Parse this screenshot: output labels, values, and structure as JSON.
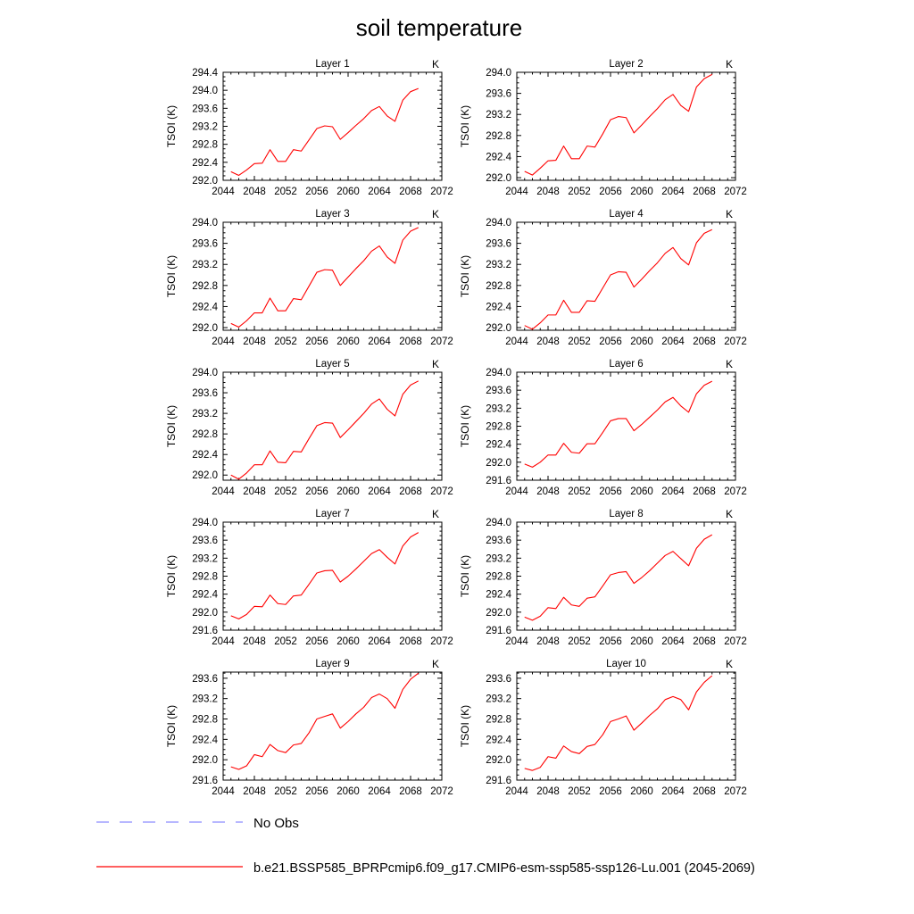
{
  "figure": {
    "title": "soil temperature"
  },
  "legend": {
    "items": [
      {
        "label": "No Obs",
        "color": "#8c8cff",
        "dash": true
      },
      {
        "label": "b.e21.BSSP585_BPRPcmip6.f09_g17.CMIP6-esm-ssp585-ssp126-Lu.001 (2045-2069)",
        "color": "#ff0000",
        "dash": false
      }
    ]
  },
  "chart_data": [
    {
      "type": "line",
      "title": "Layer 1",
      "ylabel": "TSOI  (K)",
      "units": "K",
      "xlim": [
        2044,
        2072
      ],
      "xticks": [
        2044,
        2048,
        2052,
        2056,
        2060,
        2064,
        2068,
        2072
      ],
      "ylim": [
        292.0,
        294.4
      ],
      "yticks": [
        "292.0",
        "292.4",
        "292.8",
        "293.2",
        "293.6",
        "294.0",
        "294.4"
      ],
      "x": [
        2045,
        2046,
        2047,
        2048,
        2049,
        2050,
        2051,
        2052,
        2053,
        2054,
        2055,
        2056,
        2057,
        2058,
        2059,
        2060,
        2061,
        2062,
        2063,
        2064,
        2065,
        2066,
        2067,
        2068,
        2069
      ],
      "series": [
        {
          "color": "#ff0000",
          "values": [
            292.19,
            292.11,
            292.23,
            292.37,
            292.38,
            292.68,
            292.42,
            292.42,
            292.68,
            292.65,
            292.9,
            293.15,
            293.21,
            293.19,
            292.91,
            293.06,
            293.22,
            293.37,
            293.55,
            293.64,
            293.43,
            293.31,
            293.78,
            293.97,
            294.04
          ]
        }
      ]
    },
    {
      "type": "line",
      "title": "Layer 2",
      "ylabel": "TSOI  (K)",
      "units": "K",
      "xlim": [
        2044,
        2072
      ],
      "xticks": [
        2044,
        2048,
        2052,
        2056,
        2060,
        2064,
        2068,
        2072
      ],
      "ylim": [
        291.95,
        294.0
      ],
      "yticks": [
        "292.0",
        "292.4",
        "292.8",
        "293.2",
        "293.6",
        "294.0"
      ],
      "x": [
        2045,
        2046,
        2047,
        2048,
        2049,
        2050,
        2051,
        2052,
        2053,
        2054,
        2055,
        2056,
        2057,
        2058,
        2059,
        2060,
        2061,
        2062,
        2063,
        2064,
        2065,
        2066,
        2067,
        2068,
        2069
      ],
      "series": [
        {
          "color": "#ff0000",
          "values": [
            292.12,
            292.05,
            292.18,
            292.32,
            292.33,
            292.6,
            292.36,
            292.36,
            292.6,
            292.58,
            292.83,
            293.1,
            293.16,
            293.14,
            292.85,
            293.0,
            293.16,
            293.31,
            293.48,
            293.58,
            293.37,
            293.26,
            293.72,
            293.88,
            293.96
          ]
        }
      ]
    },
    {
      "type": "line",
      "title": "Layer 3",
      "ylabel": "TSOI  (K)",
      "units": "K",
      "xlim": [
        2044,
        2072
      ],
      "xticks": [
        2044,
        2048,
        2052,
        2056,
        2060,
        2064,
        2068,
        2072
      ],
      "ylim": [
        291.95,
        294.0
      ],
      "yticks": [
        "292.0",
        "292.4",
        "292.8",
        "293.2",
        "293.6",
        "294.0"
      ],
      "x": [
        2045,
        2046,
        2047,
        2048,
        2049,
        2050,
        2051,
        2052,
        2053,
        2054,
        2055,
        2056,
        2057,
        2058,
        2059,
        2060,
        2061,
        2062,
        2063,
        2064,
        2065,
        2066,
        2067,
        2068,
        2069
      ],
      "series": [
        {
          "color": "#ff0000",
          "values": [
            292.08,
            292.01,
            292.13,
            292.28,
            292.28,
            292.56,
            292.32,
            292.32,
            292.55,
            292.53,
            292.79,
            293.05,
            293.1,
            293.09,
            292.8,
            292.96,
            293.12,
            293.27,
            293.45,
            293.55,
            293.34,
            293.22,
            293.66,
            293.83,
            293.9
          ]
        }
      ]
    },
    {
      "type": "line",
      "title": "Layer 4",
      "ylabel": "TSOI  (K)",
      "units": "K",
      "xlim": [
        2044,
        2072
      ],
      "xticks": [
        2044,
        2048,
        2052,
        2056,
        2060,
        2064,
        2068,
        2072
      ],
      "ylim": [
        291.95,
        294.0
      ],
      "yticks": [
        "292.0",
        "292.4",
        "292.8",
        "293.2",
        "293.6",
        "294.0"
      ],
      "x": [
        2045,
        2046,
        2047,
        2048,
        2049,
        2050,
        2051,
        2052,
        2053,
        2054,
        2055,
        2056,
        2057,
        2058,
        2059,
        2060,
        2061,
        2062,
        2063,
        2064,
        2065,
        2066,
        2067,
        2068,
        2069
      ],
      "series": [
        {
          "color": "#ff0000",
          "values": [
            292.04,
            291.97,
            292.09,
            292.24,
            292.24,
            292.52,
            292.29,
            292.29,
            292.51,
            292.5,
            292.75,
            293.0,
            293.06,
            293.05,
            292.77,
            292.92,
            293.08,
            293.23,
            293.41,
            293.52,
            293.31,
            293.19,
            293.61,
            293.79,
            293.86
          ]
        }
      ]
    },
    {
      "type": "line",
      "title": "Layer 5",
      "ylabel": "TSOI  (K)",
      "units": "K",
      "xlim": [
        2044,
        2072
      ],
      "xticks": [
        2044,
        2048,
        2052,
        2056,
        2060,
        2064,
        2068,
        2072
      ],
      "ylim": [
        291.9,
        294.0
      ],
      "yticks": [
        "292.0",
        "292.4",
        "292.8",
        "293.2",
        "293.6",
        "294.0"
      ],
      "x": [
        2045,
        2046,
        2047,
        2048,
        2049,
        2050,
        2051,
        2052,
        2053,
        2054,
        2055,
        2056,
        2057,
        2058,
        2059,
        2060,
        2061,
        2062,
        2063,
        2064,
        2065,
        2066,
        2067,
        2068,
        2069
      ],
      "series": [
        {
          "color": "#ff0000",
          "values": [
            292.0,
            291.92,
            292.04,
            292.2,
            292.2,
            292.47,
            292.25,
            292.24,
            292.46,
            292.45,
            292.71,
            292.96,
            293.02,
            293.01,
            292.73,
            292.88,
            293.04,
            293.2,
            293.38,
            293.48,
            293.28,
            293.15,
            293.57,
            293.75,
            293.83
          ]
        }
      ]
    },
    {
      "type": "line",
      "title": "Layer 6",
      "ylabel": "TSOI  (K)",
      "units": "K",
      "xlim": [
        2044,
        2072
      ],
      "xticks": [
        2044,
        2048,
        2052,
        2056,
        2060,
        2064,
        2068,
        2072
      ],
      "ylim": [
        291.6,
        294.0
      ],
      "yticks": [
        "291.6",
        "292.0",
        "292.4",
        "292.8",
        "293.2",
        "293.6",
        "294.0"
      ],
      "x": [
        2045,
        2046,
        2047,
        2048,
        2049,
        2050,
        2051,
        2052,
        2053,
        2054,
        2055,
        2056,
        2057,
        2058,
        2059,
        2060,
        2061,
        2062,
        2063,
        2064,
        2065,
        2066,
        2067,
        2068,
        2069
      ],
      "series": [
        {
          "color": "#ff0000",
          "values": [
            291.96,
            291.89,
            292.0,
            292.16,
            292.16,
            292.42,
            292.22,
            292.2,
            292.41,
            292.41,
            292.66,
            292.92,
            292.97,
            292.97,
            292.7,
            292.84,
            293.0,
            293.16,
            293.34,
            293.44,
            293.25,
            293.11,
            293.52,
            293.71,
            293.8
          ]
        }
      ]
    },
    {
      "type": "line",
      "title": "Layer 7",
      "ylabel": "TSOI  (K)",
      "units": "K",
      "xlim": [
        2044,
        2072
      ],
      "xticks": [
        2044,
        2048,
        2052,
        2056,
        2060,
        2064,
        2068,
        2072
      ],
      "ylim": [
        291.6,
        294.0
      ],
      "yticks": [
        "291.6",
        "292.0",
        "292.4",
        "292.8",
        "293.2",
        "293.6",
        "294.0"
      ],
      "x": [
        2045,
        2046,
        2047,
        2048,
        2049,
        2050,
        2051,
        2052,
        2053,
        2054,
        2055,
        2056,
        2057,
        2058,
        2059,
        2060,
        2061,
        2062,
        2063,
        2064,
        2065,
        2066,
        2067,
        2068,
        2069
      ],
      "series": [
        {
          "color": "#ff0000",
          "values": [
            291.92,
            291.85,
            291.95,
            292.13,
            292.12,
            292.38,
            292.19,
            292.17,
            292.36,
            292.38,
            292.62,
            292.87,
            292.92,
            292.93,
            292.67,
            292.8,
            292.96,
            293.13,
            293.3,
            293.39,
            293.22,
            293.07,
            293.47,
            293.67,
            293.77
          ]
        }
      ]
    },
    {
      "type": "line",
      "title": "Layer 8",
      "ylabel": "TSOI  (K)",
      "units": "K",
      "xlim": [
        2044,
        2072
      ],
      "xticks": [
        2044,
        2048,
        2052,
        2056,
        2060,
        2064,
        2068,
        2072
      ],
      "ylim": [
        291.6,
        294.0
      ],
      "yticks": [
        "291.6",
        "292.0",
        "292.4",
        "292.8",
        "293.2",
        "293.6",
        "294.0"
      ],
      "x": [
        2045,
        2046,
        2047,
        2048,
        2049,
        2050,
        2051,
        2052,
        2053,
        2054,
        2055,
        2056,
        2057,
        2058,
        2059,
        2060,
        2061,
        2062,
        2063,
        2064,
        2065,
        2066,
        2067,
        2068,
        2069
      ],
      "series": [
        {
          "color": "#ff0000",
          "values": [
            291.89,
            291.82,
            291.91,
            292.1,
            292.08,
            292.33,
            292.16,
            292.13,
            292.31,
            292.34,
            292.58,
            292.83,
            292.88,
            292.9,
            292.64,
            292.77,
            292.92,
            293.09,
            293.26,
            293.35,
            293.19,
            293.03,
            293.42,
            293.62,
            293.72
          ]
        }
      ]
    },
    {
      "type": "line",
      "title": "Layer 9",
      "ylabel": "TSOI  (K)",
      "units": "K",
      "xlim": [
        2044,
        2072
      ],
      "xticks": [
        2044,
        2048,
        2052,
        2056,
        2060,
        2064,
        2068,
        2072
      ],
      "ylim": [
        291.6,
        293.72
      ],
      "yticks": [
        "291.6",
        "292.0",
        "292.4",
        "292.8",
        "293.2",
        "293.6"
      ],
      "x": [
        2045,
        2046,
        2047,
        2048,
        2049,
        2050,
        2051,
        2052,
        2053,
        2054,
        2055,
        2056,
        2057,
        2058,
        2059,
        2060,
        2061,
        2062,
        2063,
        2064,
        2065,
        2066,
        2067,
        2068,
        2069
      ],
      "series": [
        {
          "color": "#ff0000",
          "values": [
            291.86,
            291.81,
            291.88,
            292.1,
            292.06,
            292.3,
            292.18,
            292.14,
            292.29,
            292.32,
            292.53,
            292.8,
            292.85,
            292.9,
            292.62,
            292.75,
            292.9,
            293.03,
            293.22,
            293.29,
            293.2,
            293.01,
            293.38,
            293.58,
            293.7
          ]
        }
      ]
    },
    {
      "type": "line",
      "title": "Layer 10",
      "ylabel": "TSOI  (K)",
      "units": "K",
      "xlim": [
        2044,
        2072
      ],
      "xticks": [
        2044,
        2048,
        2052,
        2056,
        2060,
        2064,
        2068,
        2072
      ],
      "ylim": [
        291.6,
        293.72
      ],
      "yticks": [
        "291.6",
        "292.0",
        "292.4",
        "292.8",
        "293.2",
        "293.6"
      ],
      "x": [
        2045,
        2046,
        2047,
        2048,
        2049,
        2050,
        2051,
        2052,
        2053,
        2054,
        2055,
        2056,
        2057,
        2058,
        2059,
        2060,
        2061,
        2062,
        2063,
        2064,
        2065,
        2066,
        2067,
        2068,
        2069
      ],
      "series": [
        {
          "color": "#ff0000",
          "values": [
            291.83,
            291.79,
            291.85,
            292.06,
            292.03,
            292.27,
            292.16,
            292.12,
            292.26,
            292.3,
            292.49,
            292.75,
            292.8,
            292.86,
            292.58,
            292.72,
            292.87,
            293.0,
            293.18,
            293.24,
            293.18,
            292.98,
            293.33,
            293.52,
            293.65
          ]
        }
      ]
    }
  ]
}
